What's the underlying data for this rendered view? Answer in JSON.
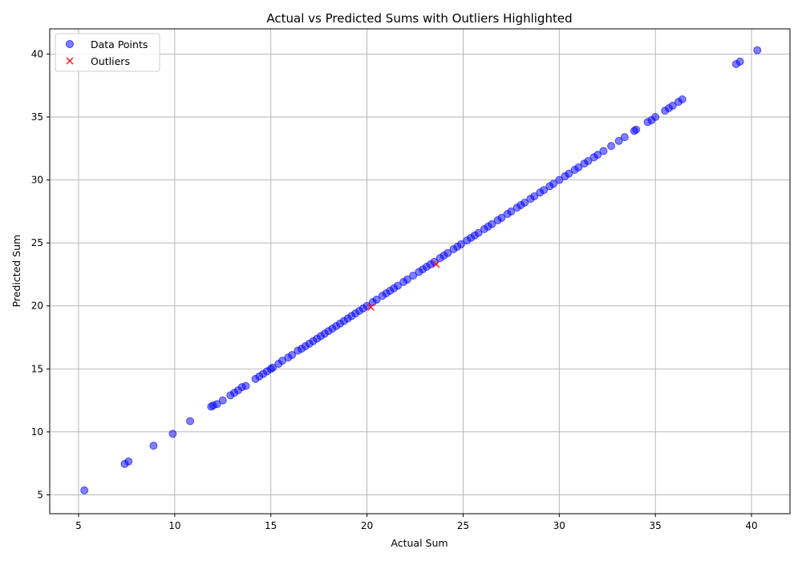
{
  "chart_data": {
    "type": "scatter",
    "title": "Actual vs Predicted Sums with Outliers Highlighted",
    "xlabel": "Actual Sum",
    "ylabel": "Predicted Sum",
    "xlim": [
      3.5,
      42.0
    ],
    "ylim": [
      3.5,
      42.0
    ],
    "xticks": [
      5,
      10,
      15,
      20,
      25,
      30,
      35,
      40
    ],
    "yticks": [
      5,
      10,
      15,
      20,
      25,
      30,
      35,
      40
    ],
    "grid": true,
    "legend_position": "top-left",
    "colors": {
      "points": "#0000ff",
      "outliers": "#ff0000",
      "grid": "#b0b0b0"
    },
    "series": [
      {
        "name": "Data Points",
        "marker": "circle",
        "points": [
          [
            5.3,
            5.35
          ],
          [
            7.4,
            7.45
          ],
          [
            7.6,
            7.65
          ],
          [
            8.9,
            8.9
          ],
          [
            9.9,
            9.85
          ],
          [
            10.8,
            10.85
          ],
          [
            11.9,
            12.0
          ],
          [
            12.0,
            12.1
          ],
          [
            12.2,
            12.2
          ],
          [
            12.5,
            12.5
          ],
          [
            12.9,
            12.9
          ],
          [
            13.1,
            13.1
          ],
          [
            13.3,
            13.3
          ],
          [
            13.5,
            13.55
          ],
          [
            13.7,
            13.65
          ],
          [
            14.2,
            14.2
          ],
          [
            14.4,
            14.4
          ],
          [
            14.6,
            14.6
          ],
          [
            14.8,
            14.8
          ],
          [
            15.0,
            15.0
          ],
          [
            15.1,
            15.1
          ],
          [
            15.4,
            15.4
          ],
          [
            15.6,
            15.65
          ],
          [
            15.9,
            15.9
          ],
          [
            16.1,
            16.1
          ],
          [
            16.4,
            16.45
          ],
          [
            16.6,
            16.6
          ],
          [
            16.8,
            16.8
          ],
          [
            17.0,
            17.0
          ],
          [
            17.2,
            17.2
          ],
          [
            17.4,
            17.4
          ],
          [
            17.6,
            17.6
          ],
          [
            17.8,
            17.8
          ],
          [
            18.0,
            18.0
          ],
          [
            18.2,
            18.2
          ],
          [
            18.4,
            18.4
          ],
          [
            18.6,
            18.6
          ],
          [
            18.8,
            18.8
          ],
          [
            19.0,
            19.0
          ],
          [
            19.2,
            19.2
          ],
          [
            19.4,
            19.4
          ],
          [
            19.6,
            19.6
          ],
          [
            19.8,
            19.8
          ],
          [
            20.0,
            20.0
          ],
          [
            20.3,
            20.3
          ],
          [
            20.5,
            20.5
          ],
          [
            20.8,
            20.8
          ],
          [
            21.0,
            21.0
          ],
          [
            21.2,
            21.2
          ],
          [
            21.4,
            21.4
          ],
          [
            21.6,
            21.6
          ],
          [
            21.9,
            21.9
          ],
          [
            22.1,
            22.1
          ],
          [
            22.4,
            22.4
          ],
          [
            22.7,
            22.7
          ],
          [
            22.9,
            22.9
          ],
          [
            23.1,
            23.1
          ],
          [
            23.3,
            23.3
          ],
          [
            23.5,
            23.5
          ],
          [
            23.8,
            23.8
          ],
          [
            24.0,
            24.0
          ],
          [
            24.2,
            24.2
          ],
          [
            24.5,
            24.5
          ],
          [
            24.7,
            24.7
          ],
          [
            24.9,
            24.9
          ],
          [
            25.2,
            25.2
          ],
          [
            25.4,
            25.4
          ],
          [
            25.6,
            25.6
          ],
          [
            25.8,
            25.8
          ],
          [
            26.1,
            26.1
          ],
          [
            26.3,
            26.3
          ],
          [
            26.5,
            26.5
          ],
          [
            26.8,
            26.8
          ],
          [
            27.0,
            27.0
          ],
          [
            27.3,
            27.3
          ],
          [
            27.5,
            27.5
          ],
          [
            27.8,
            27.8
          ],
          [
            28.0,
            28.0
          ],
          [
            28.2,
            28.2
          ],
          [
            28.5,
            28.5
          ],
          [
            28.7,
            28.7
          ],
          [
            29.0,
            29.0
          ],
          [
            29.2,
            29.2
          ],
          [
            29.5,
            29.5
          ],
          [
            29.7,
            29.7
          ],
          [
            30.0,
            30.0
          ],
          [
            30.3,
            30.3
          ],
          [
            30.5,
            30.5
          ],
          [
            30.8,
            30.8
          ],
          [
            31.0,
            31.0
          ],
          [
            31.3,
            31.3
          ],
          [
            31.5,
            31.5
          ],
          [
            31.8,
            31.8
          ],
          [
            32.0,
            32.0
          ],
          [
            32.3,
            32.3
          ],
          [
            32.7,
            32.7
          ],
          [
            33.1,
            33.1
          ],
          [
            33.4,
            33.4
          ],
          [
            33.9,
            33.9
          ],
          [
            34.0,
            34.0
          ],
          [
            34.6,
            34.6
          ],
          [
            34.8,
            34.75
          ],
          [
            35.0,
            35.0
          ],
          [
            35.5,
            35.5
          ],
          [
            35.7,
            35.7
          ],
          [
            35.9,
            35.9
          ],
          [
            36.2,
            36.2
          ],
          [
            36.4,
            36.4
          ],
          [
            39.2,
            39.2
          ],
          [
            39.4,
            39.4
          ],
          [
            40.3,
            40.3
          ]
        ]
      },
      {
        "name": "Outliers",
        "marker": "x",
        "points": [
          [
            20.2,
            19.9
          ],
          [
            23.6,
            23.3
          ]
        ]
      }
    ]
  }
}
